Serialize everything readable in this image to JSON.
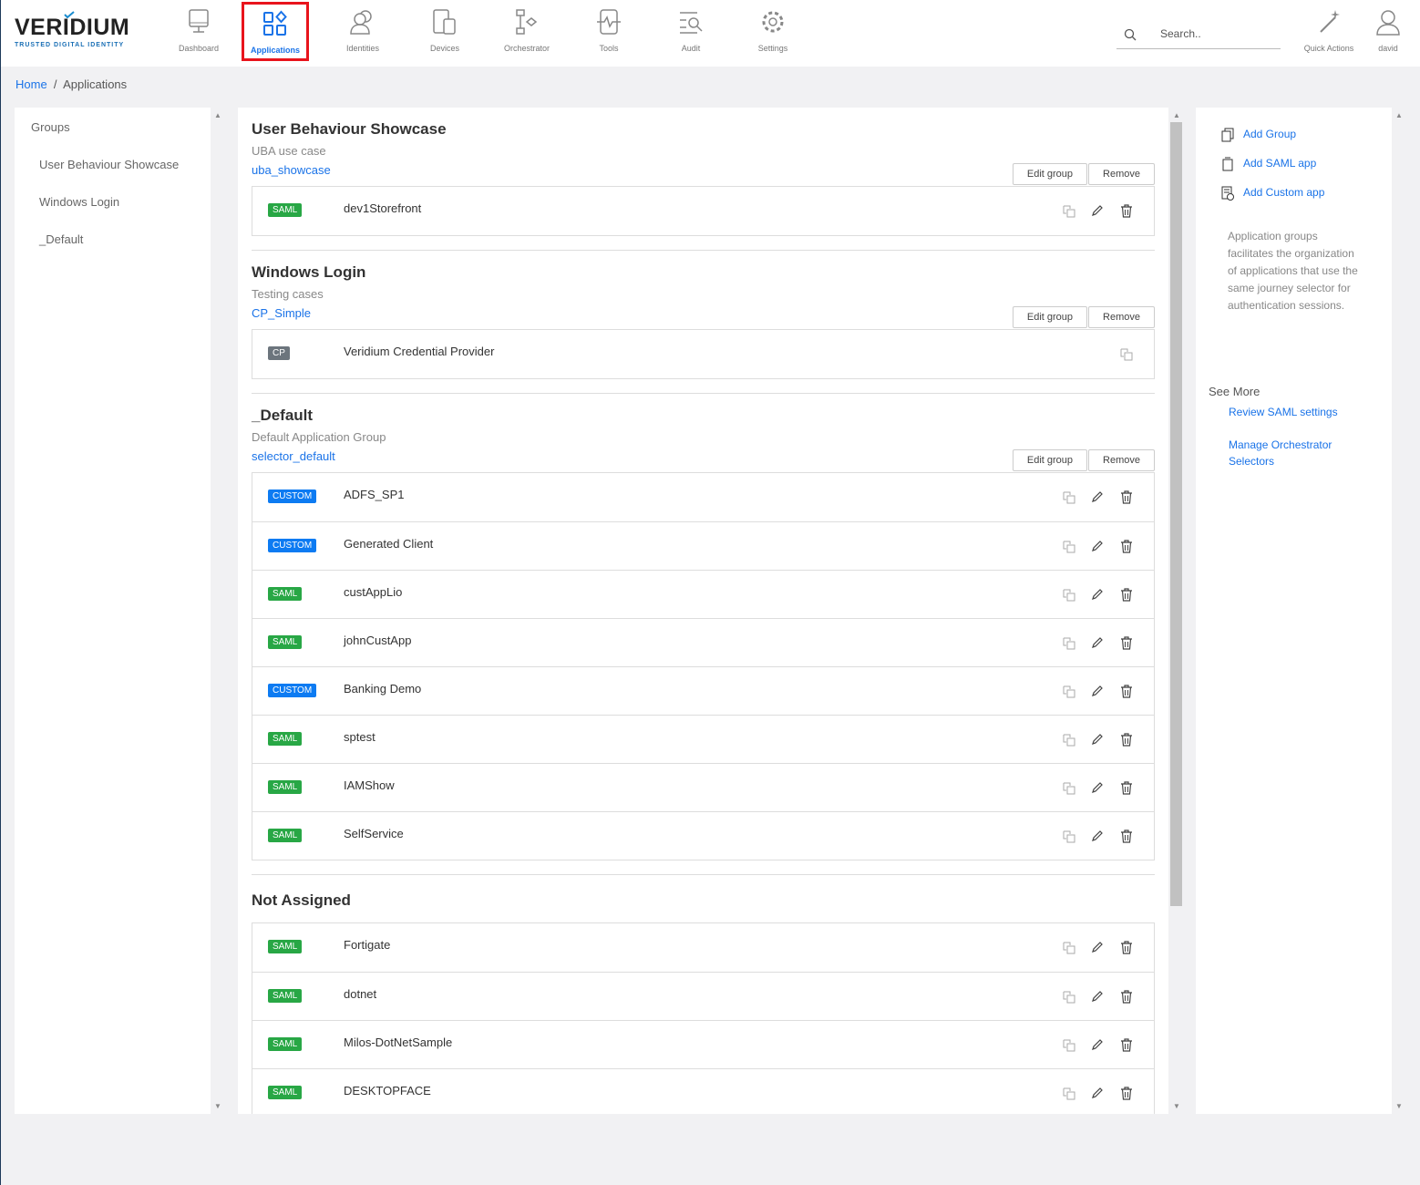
{
  "brand": {
    "name": "VERIDIUM",
    "tagline": "TRUSTED DIGITAL IDENTITY"
  },
  "nav": [
    {
      "label": "Dashboard",
      "icon": "monitor-icon"
    },
    {
      "label": "Applications",
      "icon": "apps-grid-icon",
      "active": true
    },
    {
      "label": "Identities",
      "icon": "users-icon"
    },
    {
      "label": "Devices",
      "icon": "devices-icon"
    },
    {
      "label": "Orchestrator",
      "icon": "flow-icon"
    },
    {
      "label": "Tools",
      "icon": "pulse-icon"
    },
    {
      "label": "Audit",
      "icon": "audit-search-icon"
    },
    {
      "label": "Settings",
      "icon": "gear-icon"
    }
  ],
  "search": {
    "placeholder": "Search.."
  },
  "quick_actions": "Quick Actions",
  "user": "david",
  "breadcrumb": {
    "home": "Home",
    "current": "Applications"
  },
  "sidebar": {
    "heading": "Groups",
    "items": [
      "User Behaviour Showcase",
      "Windows Login",
      "_Default"
    ]
  },
  "colors": {
    "accent": "#1a73e8",
    "SAML": "#28a745",
    "CUSTOM": "#0d7bf2",
    "CP": "#6c757d"
  },
  "buttons": {
    "edit": "Edit group",
    "remove": "Remove"
  },
  "groups": [
    {
      "title": "User Behaviour Showcase",
      "desc": "UBA use case",
      "selector": "uba_showcase",
      "apps": [
        {
          "type": "SAML",
          "name": "dev1Storefront"
        }
      ]
    },
    {
      "title": "Windows Login",
      "desc": "Testing cases",
      "selector": "CP_Simple",
      "apps": [
        {
          "type": "CP",
          "name": "Veridium Credential Provider",
          "copyOnly": true
        }
      ]
    },
    {
      "title": "_Default",
      "desc": "Default Application Group",
      "selector": "selector_default",
      "apps": [
        {
          "type": "CUSTOM",
          "name": "ADFS_SP1"
        },
        {
          "type": "CUSTOM",
          "name": "Generated Client"
        },
        {
          "type": "SAML",
          "name": "custAppLio"
        },
        {
          "type": "SAML",
          "name": "johnCustApp"
        },
        {
          "type": "CUSTOM",
          "name": "Banking Demo"
        },
        {
          "type": "SAML",
          "name": "sptest"
        },
        {
          "type": "SAML",
          "name": "IAMShow"
        },
        {
          "type": "SAML",
          "name": "SelfService"
        }
      ]
    }
  ],
  "not_assigned": {
    "title": "Not Assigned",
    "apps": [
      {
        "type": "SAML",
        "name": "Fortigate"
      },
      {
        "type": "SAML",
        "name": "dotnet"
      },
      {
        "type": "SAML",
        "name": "Milos-DotNetSample"
      },
      {
        "type": "SAML",
        "name": "DESKTOPFACE"
      }
    ]
  },
  "right": {
    "actions": [
      {
        "label": "Add Group",
        "icon": "copy-icon"
      },
      {
        "label": "Add SAML app",
        "icon": "document-icon"
      },
      {
        "label": "Add Custom app",
        "icon": "add-document-icon"
      }
    ],
    "description": "Application groups facilitates the organization of applications that use the same journey selector for authentication sessions.",
    "see_more": "See More",
    "links": [
      "Review SAML settings",
      "Manage Orchestrator Selectors"
    ]
  }
}
